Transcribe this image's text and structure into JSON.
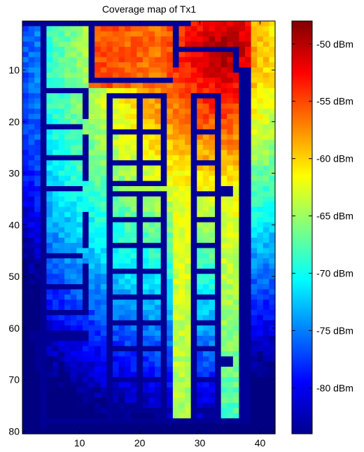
{
  "chart_data": {
    "type": "heatmap",
    "title": "Coverage map of Tx1",
    "xlabel": "",
    "ylabel": "",
    "xlim": [
      0.5,
      42.5
    ],
    "ylim": [
      0.5,
      80.5
    ],
    "y_reversed": true,
    "xticks": [
      10,
      20,
      30,
      40
    ],
    "yticks": [
      10,
      20,
      30,
      40,
      50,
      60,
      70,
      80
    ],
    "colormap": "jet",
    "color_range_dBm": [
      -84,
      -48
    ],
    "colorbar": {
      "ticks": [
        -50,
        -55,
        -60,
        -65,
        -70,
        -75,
        -80
      ],
      "labels": [
        "-50 dBm",
        "-55 dBm",
        "-60 dBm",
        "-65 dBm",
        "-70 dBm",
        "-75 dBm",
        "-80 dBm"
      ]
    },
    "walls_dBm": -84,
    "sample_values_dBm": [
      {
        "region": "top-right room near transmitter",
        "x": 33,
        "y": 6,
        "value": -51
      },
      {
        "region": "upper center room",
        "x": 20,
        "y": 8,
        "value": -56
      },
      {
        "region": "right corridor",
        "x": 36,
        "y": 30,
        "value": -60
      },
      {
        "region": "central corridor",
        "x": 26,
        "y": 40,
        "value": -62
      },
      {
        "region": "upper left room",
        "x": 8,
        "y": 8,
        "value": -66
      },
      {
        "region": "left rooms mid",
        "x": 8,
        "y": 40,
        "value": -70
      },
      {
        "region": "lower left",
        "x": 8,
        "y": 70,
        "value": -75
      },
      {
        "region": "bottom strip",
        "x": 20,
        "y": 79,
        "value": -80
      }
    ]
  }
}
